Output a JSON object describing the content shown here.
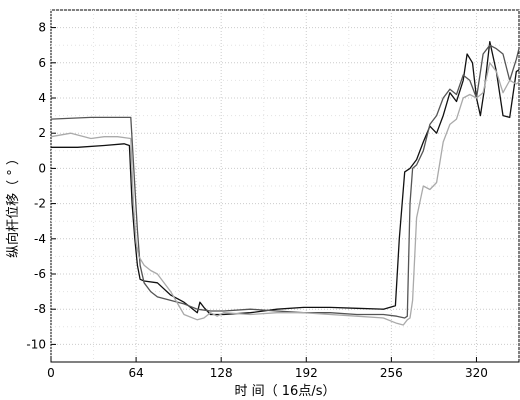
{
  "chart_data": {
    "type": "line",
    "xlabel": "时 间（ 16点/s）",
    "ylabel": "纵向杆位移（ ° ）",
    "xlim": [
      0,
      352
    ],
    "ylim": [
      -11,
      9
    ],
    "xticks": [
      0,
      64,
      128,
      192,
      256,
      320
    ],
    "yticks": [
      -10,
      -8,
      -6,
      -4,
      -2,
      0,
      2,
      4,
      6,
      8
    ],
    "grid": true,
    "series": [
      {
        "color": "#111111",
        "x": [
          0,
          20,
          40,
          55,
          59,
          61,
          63,
          65,
          67,
          70,
          80,
          90,
          100,
          105,
          110,
          112,
          115,
          120,
          130,
          150,
          170,
          190,
          210,
          230,
          250,
          259,
          262,
          266,
          270,
          275,
          280,
          285,
          290,
          295,
          300,
          305,
          310,
          313,
          317,
          320,
          323,
          326,
          330,
          335,
          340,
          345,
          350,
          352
        ],
        "y": [
          1.2,
          1.2,
          1.3,
          1.4,
          1.3,
          -2,
          -4,
          -5.5,
          -6.3,
          -6.4,
          -6.5,
          -7.2,
          -7.6,
          -7.9,
          -8.2,
          -7.6,
          -7.9,
          -8.3,
          -8.3,
          -8.2,
          -8.0,
          -7.9,
          -7.9,
          -7.95,
          -8.0,
          -7.8,
          -4,
          -0.2,
          0,
          0.5,
          1.5,
          2.4,
          2.0,
          3.0,
          4.3,
          3.8,
          5.0,
          6.5,
          6.0,
          4.0,
          3.0,
          4.5,
          7.2,
          5.5,
          3.0,
          2.9,
          5.5,
          5.6
        ]
      },
      {
        "color": "#555555",
        "x": [
          0,
          30,
          60,
          63,
          65,
          67,
          70,
          75,
          80,
          90,
          100,
          110,
          120,
          130,
          150,
          170,
          190,
          210,
          230,
          250,
          260,
          266,
          268,
          270,
          272,
          275,
          280,
          285,
          290,
          295,
          300,
          305,
          310,
          315,
          320,
          325,
          330,
          335,
          340,
          345,
          350,
          352
        ],
        "y": [
          2.8,
          2.9,
          2.9,
          -1,
          -3.5,
          -5.5,
          -6.5,
          -7.0,
          -7.3,
          -7.5,
          -7.7,
          -8.0,
          -8.1,
          -8.1,
          -8.0,
          -8.1,
          -8.2,
          -8.2,
          -8.3,
          -8.3,
          -8.4,
          -8.5,
          -8.4,
          -2,
          0,
          0.2,
          1.0,
          2.5,
          3.0,
          4.0,
          4.5,
          4.2,
          5.3,
          5.0,
          4.0,
          6.5,
          7.0,
          6.8,
          6.5,
          5.0,
          6.2,
          6.8
        ]
      },
      {
        "color": "#aaaaaa",
        "x": [
          0,
          15,
          20,
          30,
          40,
          50,
          60,
          62,
          64,
          66,
          70,
          75,
          80,
          90,
          100,
          110,
          115,
          120,
          125,
          130,
          150,
          170,
          190,
          210,
          230,
          250,
          260,
          265,
          268,
          270,
          272,
          275,
          280,
          285,
          290,
          295,
          300,
          305,
          310,
          315,
          320,
          325,
          330,
          335,
          340,
          345,
          350,
          352
        ],
        "y": [
          1.8,
          2.0,
          1.9,
          1.7,
          1.8,
          1.8,
          1.7,
          -2,
          -4.2,
          -5.0,
          -5.5,
          -5.8,
          -6.0,
          -7.0,
          -8.3,
          -8.6,
          -8.5,
          -8.2,
          -8.4,
          -8.2,
          -8.3,
          -8.2,
          -8.2,
          -8.3,
          -8.4,
          -8.5,
          -8.8,
          -8.9,
          -8.6,
          -8.5,
          -7.5,
          -2.8,
          -1.0,
          -1.2,
          -0.8,
          1.5,
          2.5,
          2.8,
          4.0,
          4.2,
          4.0,
          4.3,
          6.0,
          5.5,
          4.3,
          5.0,
          4.8,
          4.9
        ]
      }
    ]
  }
}
